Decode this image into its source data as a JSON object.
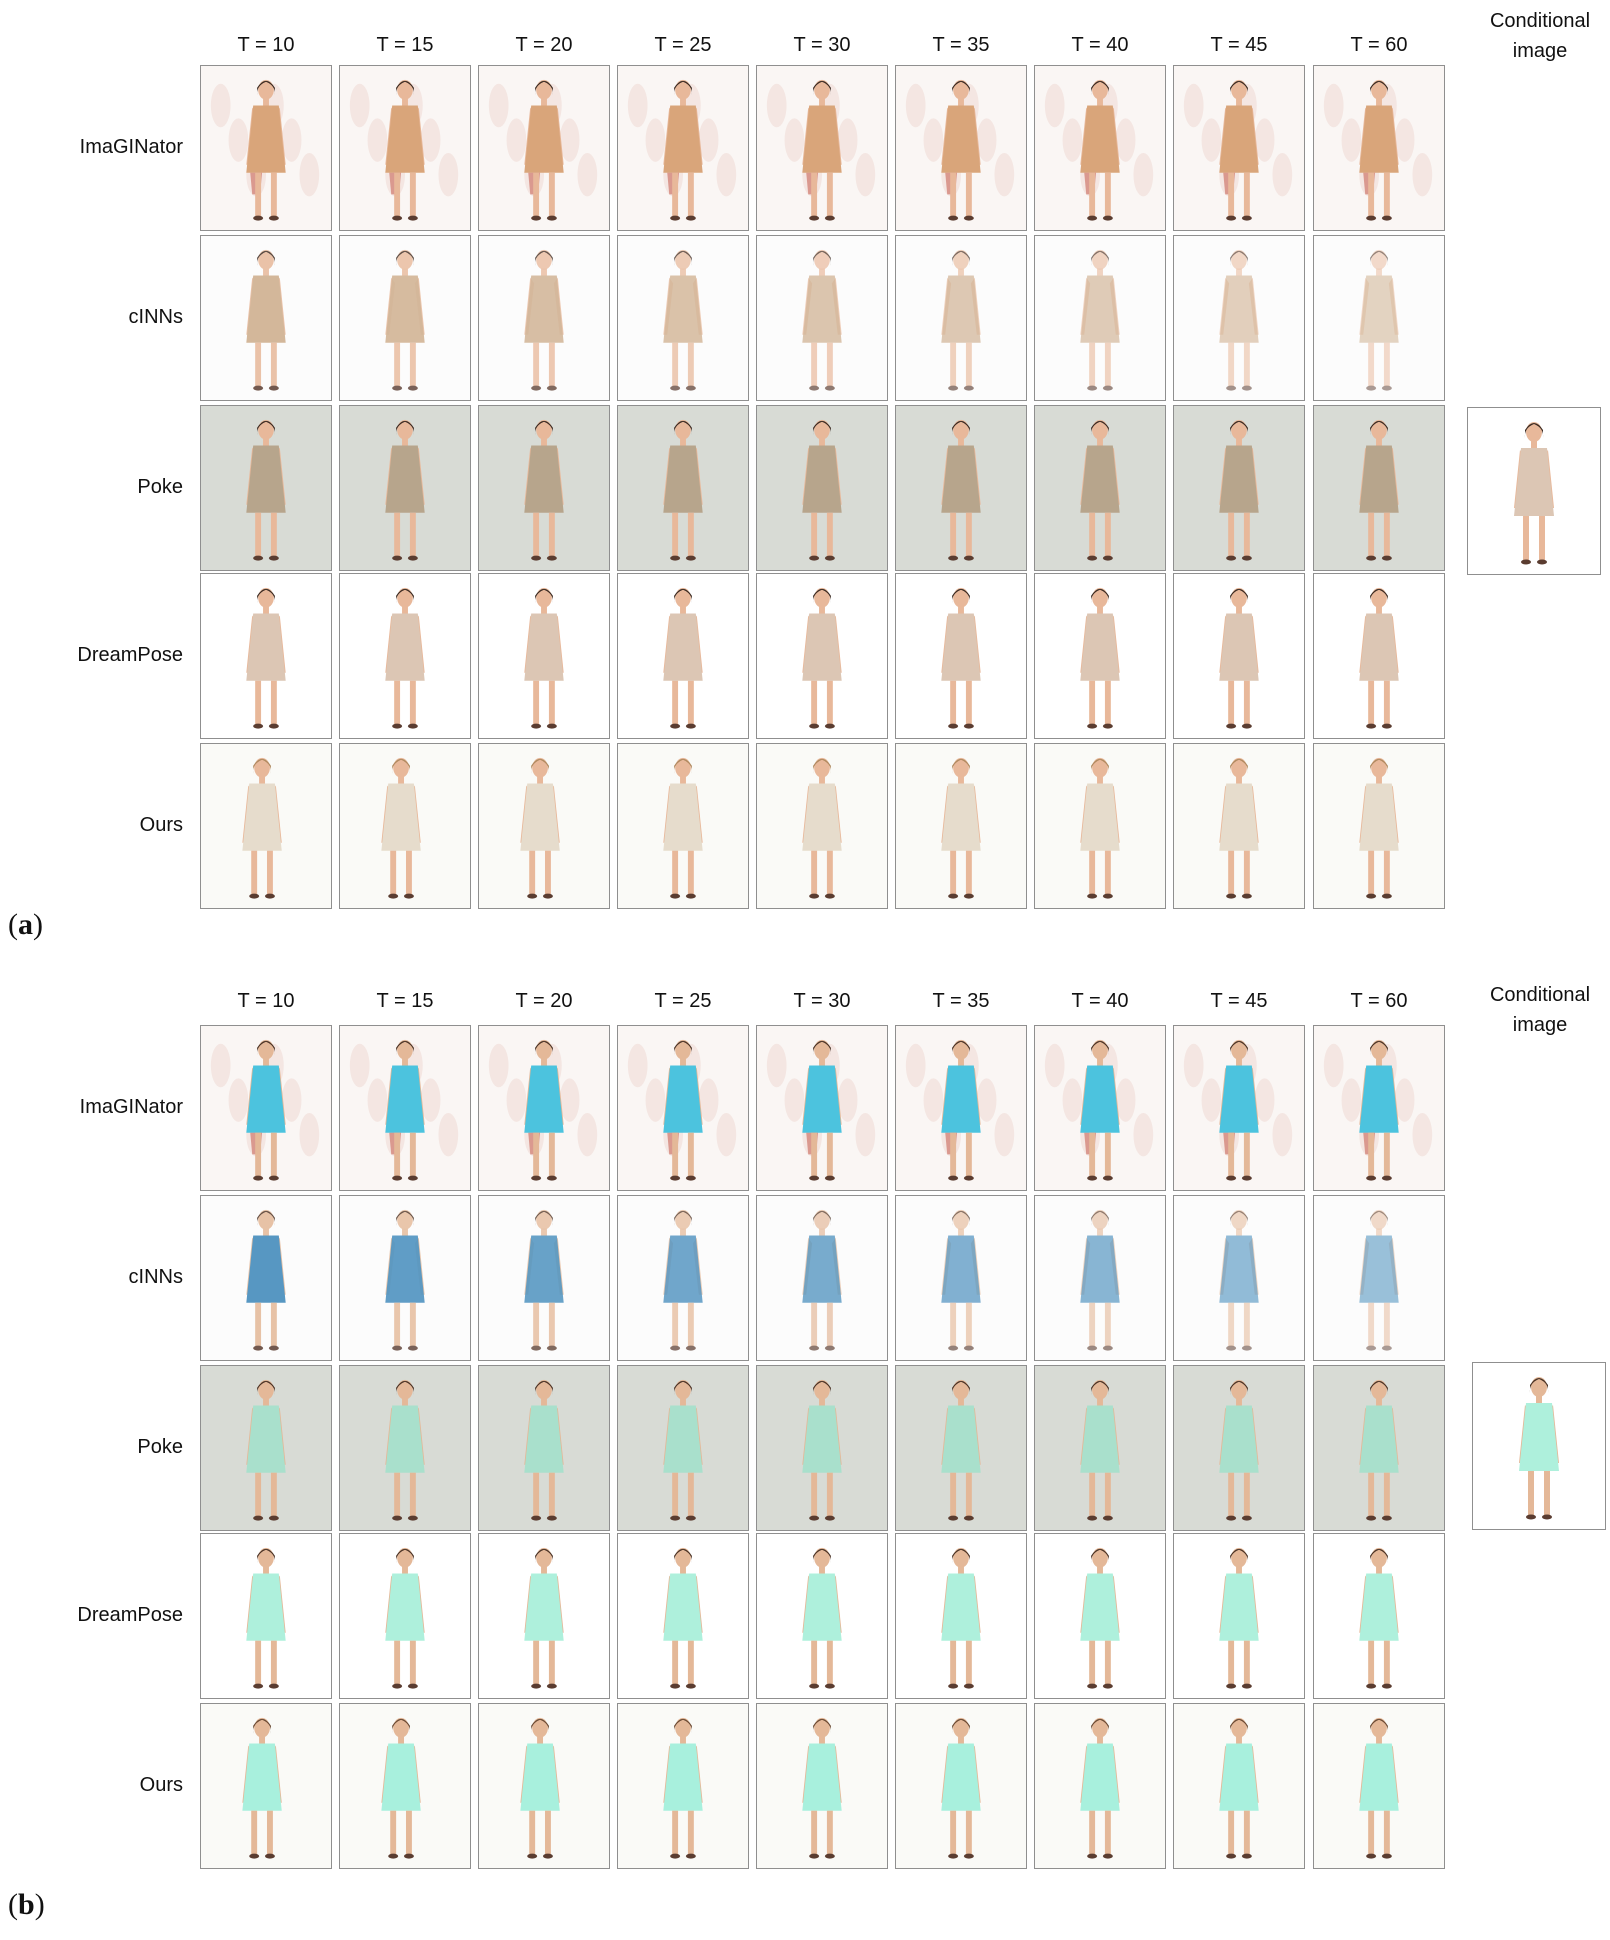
{
  "columns": [
    "T = 10",
    "T = 15",
    "T = 20",
    "T = 25",
    "T = 30",
    "T = 35",
    "T = 40",
    "T = 45",
    "T = 60"
  ],
  "conditional_label_line1": "Conditional",
  "conditional_label_line2": "image",
  "rows": [
    {
      "label": "ImaGINator",
      "bg": "#faf6f4",
      "style": "noisy"
    },
    {
      "label": "cINNs",
      "bg": "#fcfcfc",
      "style": "blurry"
    },
    {
      "label": "Poke",
      "bg": "#d8dbd5",
      "style": "gray"
    },
    {
      "label": "DreamPose",
      "bg": "#ffffff",
      "style": "clean"
    },
    {
      "label": "Ours",
      "bg": "#fafaf7",
      "style": "clean"
    }
  ],
  "panels": [
    {
      "letter": "a",
      "dress_colors": {
        "noisy": "#d9a57a",
        "blurry": "#ccab89",
        "gray": "#b7a58c",
        "clean": "#dcc6b4"
      },
      "skin": "#e8b89a",
      "hair": "#3a2a22",
      "ours_hair": "#b08a60",
      "ours_dress": "#e6dccc"
    },
    {
      "letter": "b",
      "dress_colors": {
        "noisy": "#4cc3de",
        "blurry": "#3b86b8",
        "gray": "#a9e0cc",
        "clean": "#aef0dc"
      },
      "skin": "#e4b898",
      "hair": "#4a3326",
      "ours_hair": "#6a4a34",
      "ours_dress": "#a8f0dd"
    }
  ]
}
